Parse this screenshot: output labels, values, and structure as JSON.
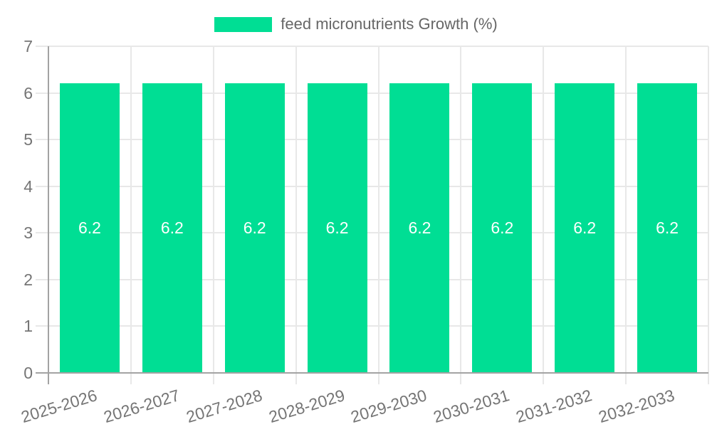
{
  "legend": {
    "label": "feed micronutrients Growth (%)"
  },
  "chart_data": {
    "type": "bar",
    "title": "",
    "xlabel": "",
    "ylabel": "",
    "categories": [
      "2025-2026",
      "2026-2027",
      "2027-2028",
      "2028-2029",
      "2029-2030",
      "2030-2031",
      "2031-2032",
      "2032-2033"
    ],
    "series": [
      {
        "name": "feed micronutrients Growth (%)",
        "values": [
          6.2,
          6.2,
          6.2,
          6.2,
          6.2,
          6.2,
          6.2,
          6.2
        ]
      }
    ],
    "bar_labels": [
      "6.2",
      "6.2",
      "6.2",
      "6.2",
      "6.2",
      "6.2",
      "6.2",
      "6.2"
    ],
    "ylim": [
      0,
      7
    ],
    "yticks": [
      0,
      1,
      2,
      3,
      4,
      5,
      6,
      7
    ],
    "grid": true,
    "legend_position": "top"
  },
  "colors": {
    "bar": "#00DE94",
    "bar_label": "#ffffff",
    "grid": "#e8e8e8",
    "axis": "#a3a3a3",
    "tick_text": "#757575",
    "legend_text": "#666666"
  }
}
